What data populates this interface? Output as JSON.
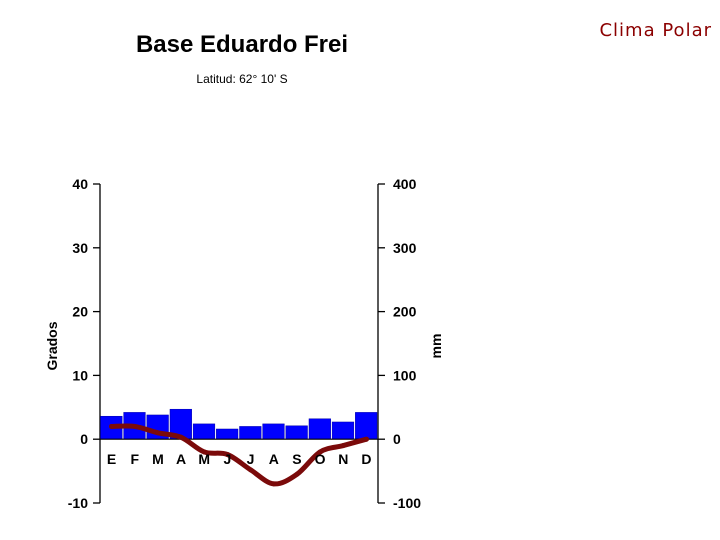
{
  "slide": {
    "corner_title": "Clima Polar"
  },
  "chart_data": {
    "type": "bar+line",
    "title": "Base Eduardo Frei",
    "subtitle": "Latitud: 62° 10' S",
    "categories": [
      "E",
      "F",
      "M",
      "A",
      "M",
      "J",
      "J",
      "A",
      "S",
      "O",
      "N",
      "D"
    ],
    "left_axis": {
      "label": "Grados",
      "ylim": [
        -10,
        40
      ],
      "ticks": [
        40,
        30,
        20,
        10,
        0,
        -10
      ]
    },
    "right_axis": {
      "label": "mm",
      "ylim": [
        -100,
        400
      ],
      "ticks": [
        400,
        300,
        200,
        100,
        0,
        -100
      ]
    },
    "series": [
      {
        "type": "bar",
        "axis": "right",
        "color": "#0000ff",
        "values": [
          36,
          42,
          38,
          47,
          24,
          16,
          20,
          24,
          21,
          32,
          27,
          42
        ]
      },
      {
        "type": "line",
        "axis": "left",
        "color": "#7b0a0a",
        "values": [
          2.0,
          2.0,
          1.0,
          0.3,
          -2.0,
          -2.4,
          -4.8,
          -7.0,
          -5.5,
          -2.0,
          -1.0,
          0.0
        ]
      }
    ],
    "grid": false,
    "legend": "none"
  }
}
